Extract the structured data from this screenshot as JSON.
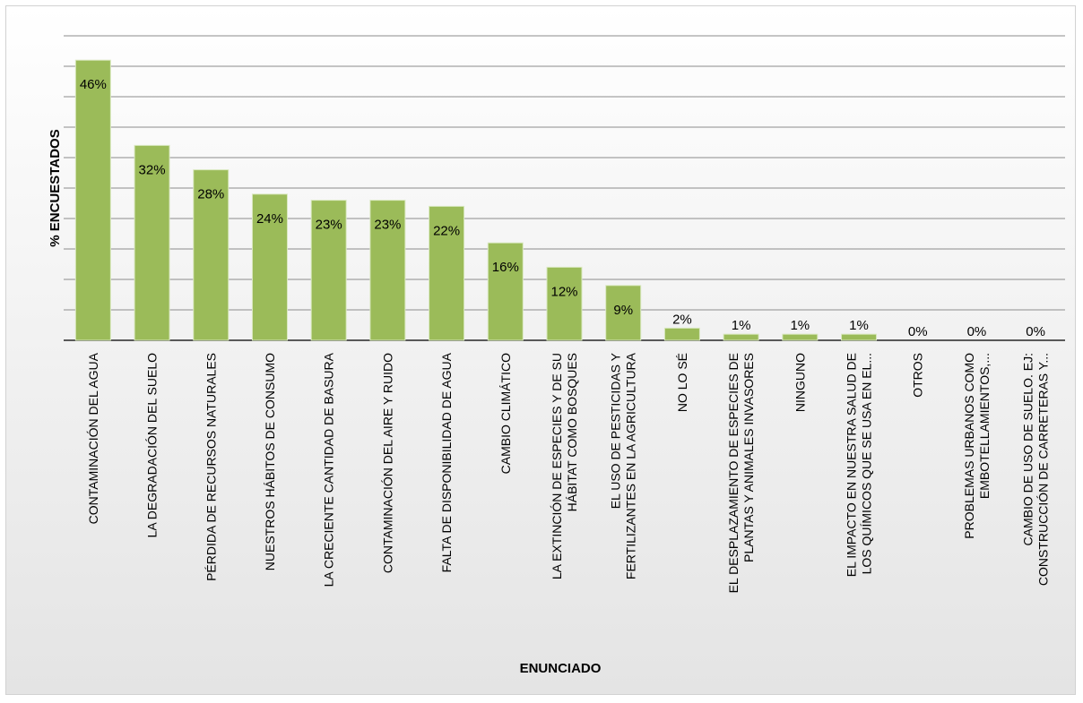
{
  "chart_data": {
    "type": "bar",
    "title": "",
    "xlabel": "ENUNCIADO",
    "ylabel": "% ENCUESTADOS",
    "ylim": [
      0,
      50
    ],
    "grid": true,
    "legend": "none",
    "bar_color": "#9bbb59",
    "categories": [
      [
        "CONTAMINACIÓN DEL AGUA"
      ],
      [
        "LA DEGRADACIÓN DEL SUELO"
      ],
      [
        "PÉRDIDA DE RECURSOS NATURALES"
      ],
      [
        "NUESTROS HÁBITOS DE CONSUMO"
      ],
      [
        "LA CRECIENTE CANTIDAD DE BASURA"
      ],
      [
        "CONTAMINACIÓN DEL AIRE Y RUIDO"
      ],
      [
        "FALTA DE DISPONIBILIDAD DE AGUA"
      ],
      [
        "CAMBIO CLIMÁTICO"
      ],
      [
        "LA EXTINCIÓN DE ESPECIES Y DE SU",
        "HÁBITAT COMO BOSQUES"
      ],
      [
        "EL USO DE PESTICIDAS Y",
        "FERTILIZANTES EN LA AGRICULTURA"
      ],
      [
        "NO LO SÉ"
      ],
      [
        "EL DESPLAZAMIENTO DE ESPECIES DE",
        "PLANTAS Y ANIMALES INVASORES"
      ],
      [
        "NINGUNO"
      ],
      [
        "EL IMPACTO EN NUESTRA SALUD DE",
        "LOS QUÍMICOS QUE SE USA EN EL..."
      ],
      [
        "OTROS"
      ],
      [
        "PROBLEMAS URBANOS COMO",
        "EMBOTELLAMIENTOS,..."
      ],
      [
        "CAMBIO DE USO DE SUELO. EJ:",
        "CONSTRUCCIÓN DE CARRETERAS Y..."
      ]
    ],
    "values": [
      46,
      32,
      28,
      24,
      23,
      23,
      22,
      16,
      12,
      9,
      2,
      1,
      1,
      1,
      0,
      0,
      0
    ],
    "value_labels": [
      "46%",
      "32%",
      "28%",
      "24%",
      "23%",
      "23%",
      "22%",
      "16%",
      "12%",
      "9%",
      "2%",
      "1%",
      "1%",
      "1%",
      "0%",
      "0%",
      "0%"
    ]
  }
}
